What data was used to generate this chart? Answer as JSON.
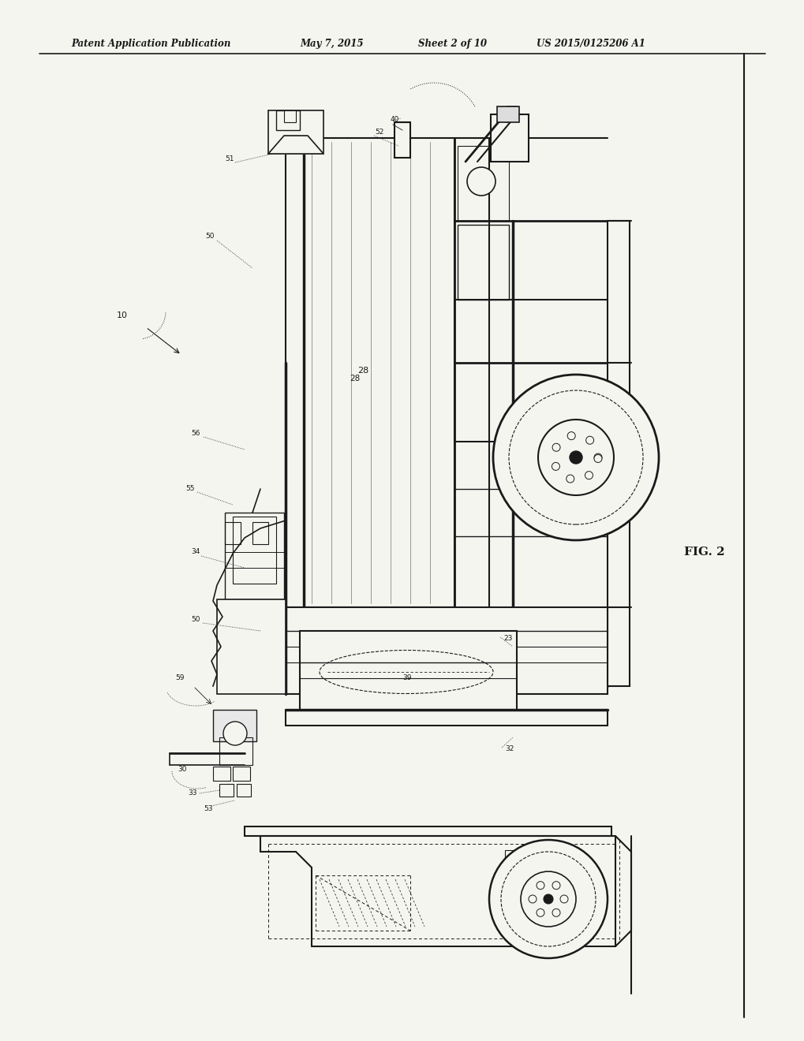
{
  "title": "Patent Application Publication",
  "date": "May 7, 2015",
  "sheet": "Sheet 2 of 10",
  "patent_num": "US 2015/0125206 A1",
  "fig_label": "FIG. 2",
  "bg_color": "#f5f5f0",
  "line_color": "#1a1a1a",
  "text_color": "#1a1a1a",
  "header_fontsize": 8.5,
  "label_fontsize": 6.5,
  "fig_label_fontsize": 11
}
